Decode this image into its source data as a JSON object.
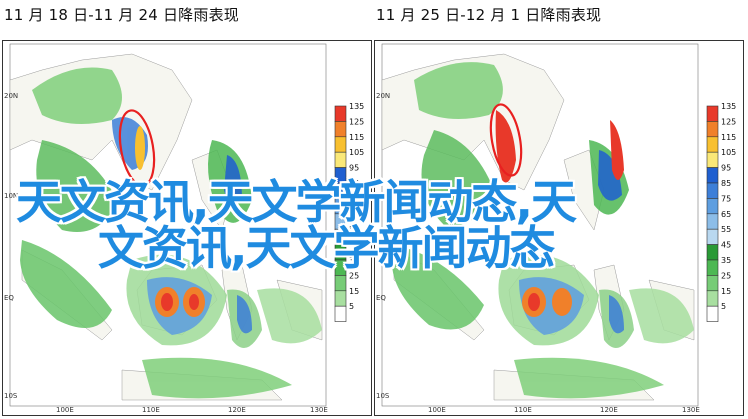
{
  "panels": [
    {
      "title": "11 月 18 日-11 月 24 日降雨表现"
    },
    {
      "title": "11 月 25 日-12 月 1 日降雨表现"
    }
  ],
  "axes": {
    "lat_labels": [
      "20N",
      "10N",
      "EQ",
      "10S"
    ],
    "lon_labels": [
      "100E",
      "110E",
      "120E",
      "130E"
    ]
  },
  "colorbar": {
    "labels": [
      "135",
      "125",
      "115",
      "105",
      "95",
      "85",
      "75",
      "65",
      "55",
      "45",
      "35",
      "25",
      "15",
      "5"
    ],
    "colors": [
      "#e8392a",
      "#f0802a",
      "#f8c030",
      "#fae878",
      "#1f5fd0",
      "#3d7fd8",
      "#5e9ee0",
      "#8cbde8",
      "#b9d8f0",
      "#2a9a36",
      "#4db853",
      "#77cc77",
      "#a8dfa0",
      "#ffffff"
    ]
  },
  "overlay": {
    "line1": "天文资讯,天文学新闻动态,天",
    "line2": "文资讯,天文学新闻动态"
  }
}
